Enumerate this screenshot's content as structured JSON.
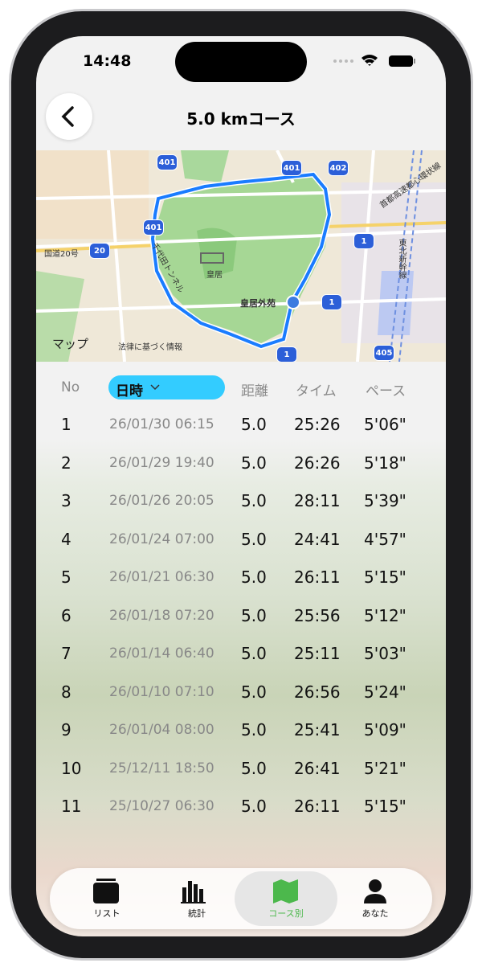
{
  "status_bar": {
    "time": "14:48"
  },
  "header": {
    "title": "5.0 kmコース"
  },
  "map": {
    "labels": [
      "401",
      "401",
      "402",
      "401",
      "20",
      "1",
      "1",
      "1",
      "405",
      "国道20号",
      "首都高速都心環状線",
      "東北新幹線",
      "千代田トンネル",
      "皇居",
      "皇居外苑",
      "マップ",
      "法律に基づく情報"
    ]
  },
  "table": {
    "columns": [
      "No",
      "日時",
      "距離",
      "タイム",
      "ペース"
    ],
    "rows": [
      [
        "1",
        "26/01/30 06:15",
        "5.0",
        "25:26",
        "5'06\""
      ],
      [
        "2",
        "26/01/29 19:40",
        "5.0",
        "26:26",
        "5'18\""
      ],
      [
        "3",
        "26/01/26 20:05",
        "5.0",
        "28:11",
        "5'39\""
      ],
      [
        "4",
        "26/01/24 07:00",
        "5.0",
        "24:41",
        "4'57\""
      ],
      [
        "5",
        "26/01/21 06:30",
        "5.0",
        "26:11",
        "5'15\""
      ],
      [
        "6",
        "26/01/18 07:20",
        "5.0",
        "25:56",
        "5'12\""
      ],
      [
        "7",
        "26/01/14 06:40",
        "5.0",
        "25:11",
        "5'03\""
      ],
      [
        "8",
        "26/01/10 07:10",
        "5.0",
        "26:56",
        "5'24\""
      ],
      [
        "9",
        "26/01/04 08:00",
        "5.0",
        "25:41",
        "5'09\""
      ],
      [
        "10",
        "25/12/11 18:50",
        "5.0",
        "26:41",
        "5'21\""
      ],
      [
        "11",
        "25/10/27 06:30",
        "5.0",
        "26:11",
        "5'15\""
      ]
    ]
  },
  "tabs": [
    "リスト",
    "統計",
    "コース別",
    "あなた"
  ]
}
